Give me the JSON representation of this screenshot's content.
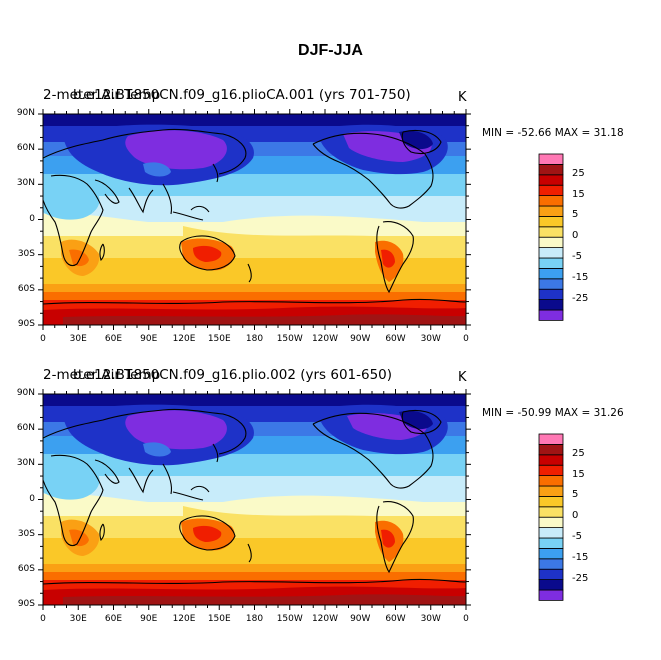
{
  "title": "DJF-JJA",
  "colors": {
    "levels": [
      "#7e2de0",
      "#0a0a8c",
      "#1e32c8",
      "#3c78e6",
      "#3ca0f0",
      "#78d2f5",
      "#c8ecfa",
      "#fafac8",
      "#fae164",
      "#fac828",
      "#faa014",
      "#fa6e00",
      "#f01e00",
      "#c80000",
      "#a01414",
      "#ff78b4"
    ]
  },
  "colorbar": {
    "labels": [
      "25",
      "15",
      "5",
      "0",
      "-5",
      "-15",
      "-25"
    ]
  },
  "axes": {
    "lat_labels": [
      "90N",
      "60N",
      "30N",
      "0",
      "30S",
      "60S",
      "90S"
    ],
    "lon_labels": [
      "0",
      "30E",
      "60E",
      "90E",
      "120E",
      "150E",
      "180",
      "150W",
      "120W",
      "90W",
      "60W",
      "30W",
      "0"
    ]
  },
  "panels": [
    {
      "left_title": "2-meter Air Temp",
      "case_title": "b.e12.B1850CN.f09_g16.plioCA.001  (yrs  701-750)",
      "units": "K",
      "min_label": "MIN = ",
      "min_value": "-52.66",
      "max_label": "MAX = ",
      "max_value": "31.18"
    },
    {
      "left_title": "2-meter Air Temp",
      "case_title": "b.e12.B1850CN.f09_g16.plio.002  (yrs  601-650)",
      "units": "K",
      "min_label": "MIN = ",
      "min_value": "-50.99",
      "max_label": "MAX = ",
      "max_value": "31.26"
    }
  ]
}
